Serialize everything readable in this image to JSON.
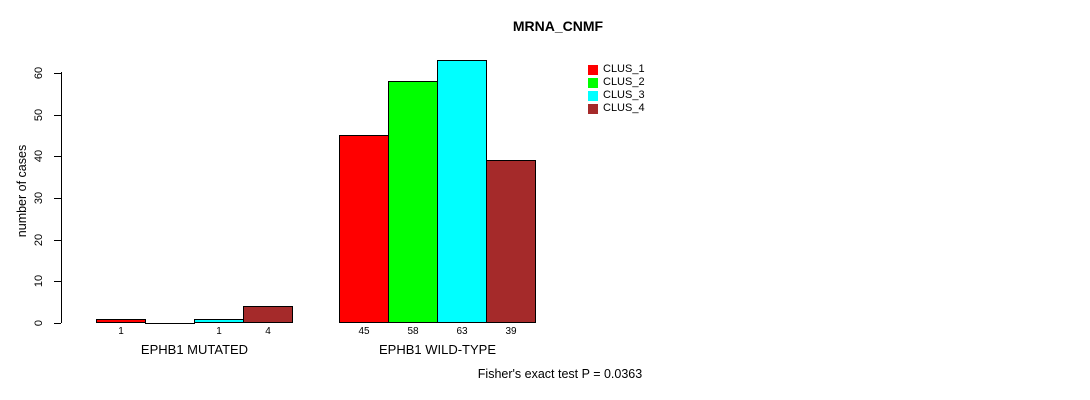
{
  "chart_data": {
    "type": "bar",
    "title": "MRNA_CNMF",
    "xlabel": "",
    "ylabel": "number of cases",
    "ylim": [
      0,
      60
    ],
    "yticks": [
      0,
      10,
      20,
      30,
      40,
      50,
      60
    ],
    "grid": false,
    "legend_position": "top-right",
    "categories": [
      "EPHB1 MUTATED",
      "EPHB1 WILD-TYPE"
    ],
    "series": [
      {
        "name": "CLUS_1",
        "color": "#FF0000",
        "values": [
          1,
          45
        ]
      },
      {
        "name": "CLUS_2",
        "color": "#00FF00",
        "values": [
          0,
          58
        ]
      },
      {
        "name": "CLUS_3",
        "color": "#00FFFF",
        "values": [
          1,
          63
        ]
      },
      {
        "name": "CLUS_4",
        "color": "#A52A2A",
        "values": [
          4,
          39
        ]
      }
    ],
    "bar_value_labels": [
      [
        "1",
        "",
        "1",
        "4"
      ],
      [
        "45",
        "58",
        "63",
        "39"
      ]
    ],
    "annotation": "Fisher's exact test P = 0.0363",
    "axis_color": "#000000",
    "background": "#FFFFFF",
    "bar_border_color": "#000000"
  }
}
